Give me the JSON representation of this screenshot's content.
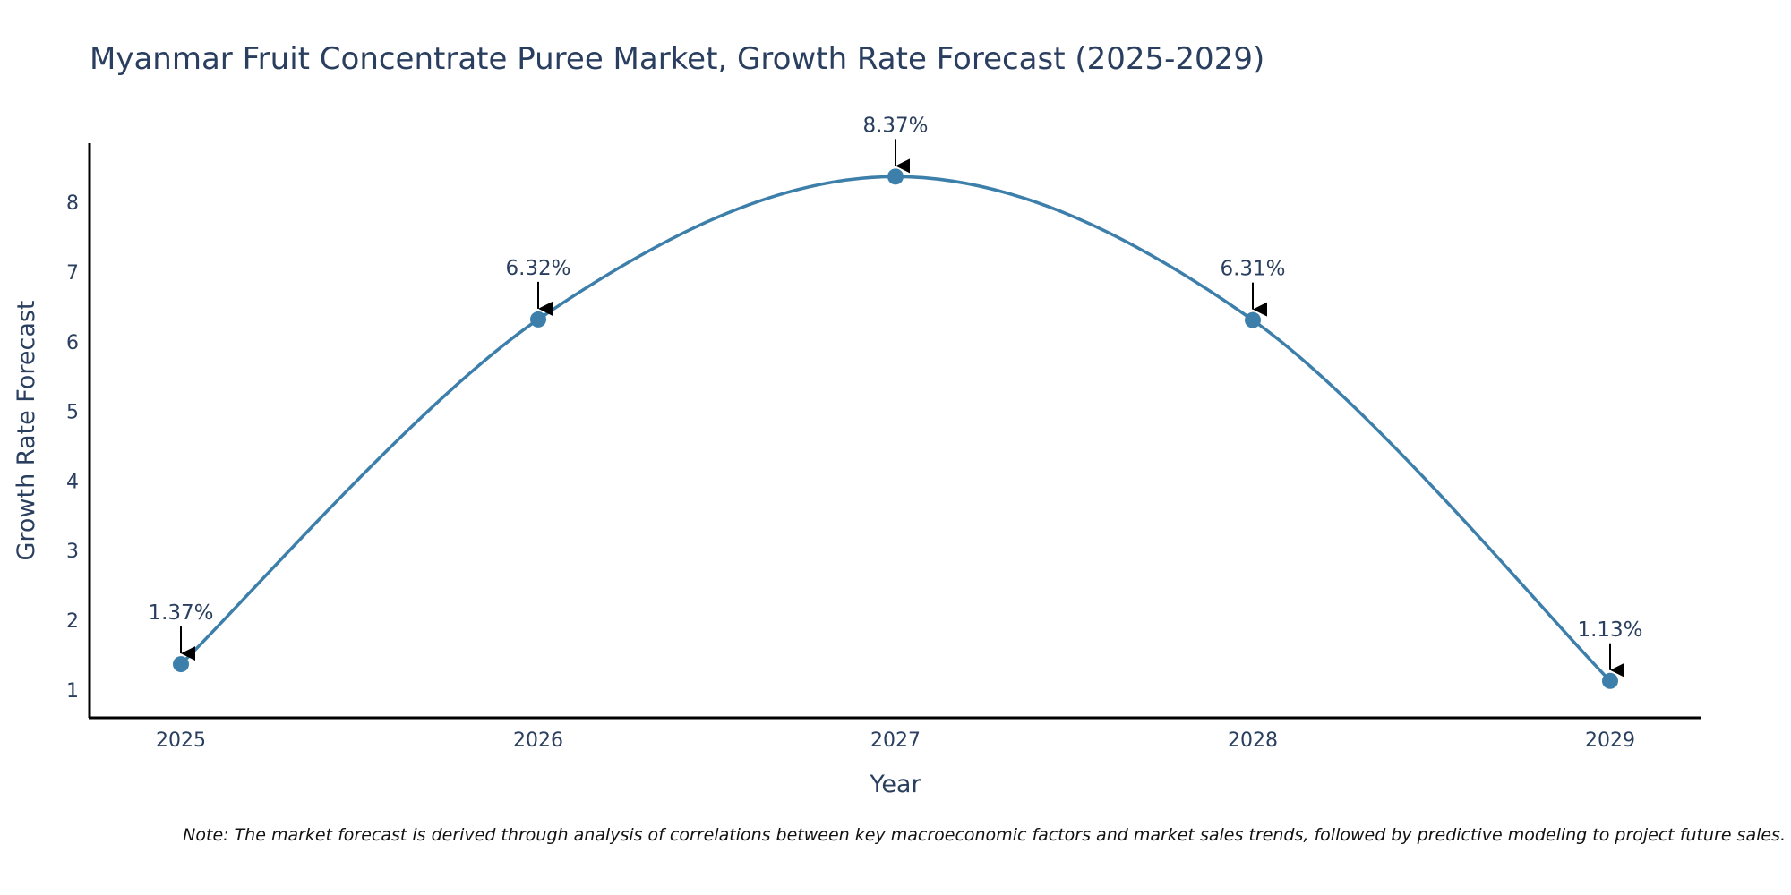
{
  "chart_data": {
    "type": "line",
    "title": "Myanmar Fruit Concentrate Puree Market, Growth Rate Forecast (2025-2029)",
    "xlabel": "Year",
    "ylabel": "Growth Rate Forecast",
    "categories": [
      "2025",
      "2026",
      "2027",
      "2028",
      "2029"
    ],
    "series": [
      {
        "name": "Growth Rate Forecast",
        "values": [
          1.37,
          6.32,
          8.37,
          6.31,
          1.13
        ],
        "labels": [
          "1.37%",
          "6.32%",
          "8.37%",
          "6.31%",
          "1.13%"
        ]
      }
    ],
    "ylim": [
      0.6,
      8.85
    ],
    "yticks": [
      1,
      2,
      3,
      4,
      5,
      6,
      7,
      8
    ],
    "grid": false,
    "line_shape": "spline",
    "line_color": "#3d7fab",
    "marker_color": "#3d7fab",
    "note": "Note: The market forecast is derived through analysis of correlations between key macroeconomic factors and market sales trends, followed by predictive modeling to project future sales."
  }
}
